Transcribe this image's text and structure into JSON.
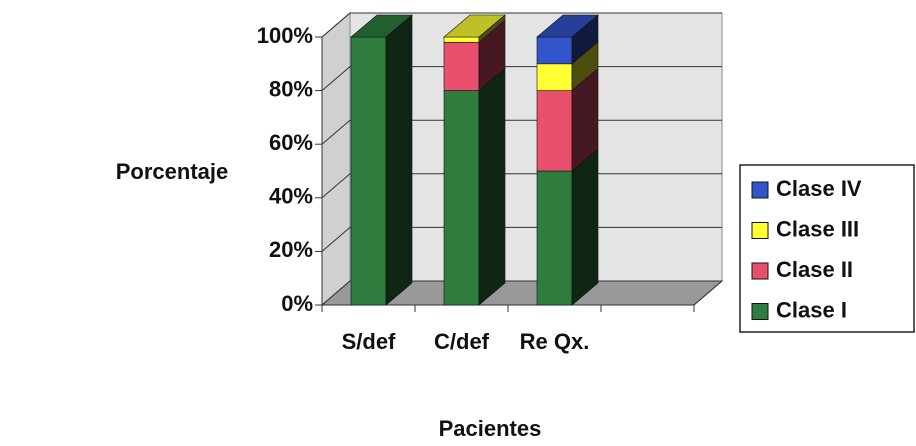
{
  "chart_data": {
    "type": "bar",
    "stacked": true,
    "three_d": true,
    "y_label": "Porcentaje",
    "x_label": "Pacientes",
    "categories": [
      "S/def",
      "C/def",
      "Re Qx."
    ],
    "series": [
      {
        "name": "Clase I",
        "color": "#2e7d3e",
        "values": [
          100,
          80,
          50
        ]
      },
      {
        "name": "Clase II",
        "color": "#e8506e",
        "values": [
          0,
          18,
          30
        ]
      },
      {
        "name": "Clase III",
        "color": "#ffff33",
        "values": [
          0,
          2,
          10
        ]
      },
      {
        "name": "Clase IV",
        "color": "#3355cc",
        "values": [
          0,
          0,
          10
        ]
      }
    ],
    "ylim": [
      0,
      100
    ],
    "yticks": [
      {
        "value": 0,
        "label": "0%"
      },
      {
        "value": 20,
        "label": "20%"
      },
      {
        "value": 40,
        "label": "40%"
      },
      {
        "value": 60,
        "label": "60%"
      },
      {
        "value": 80,
        "label": "80%"
      },
      {
        "value": 100,
        "label": "100%"
      }
    ],
    "grid": true,
    "legend": "right"
  }
}
